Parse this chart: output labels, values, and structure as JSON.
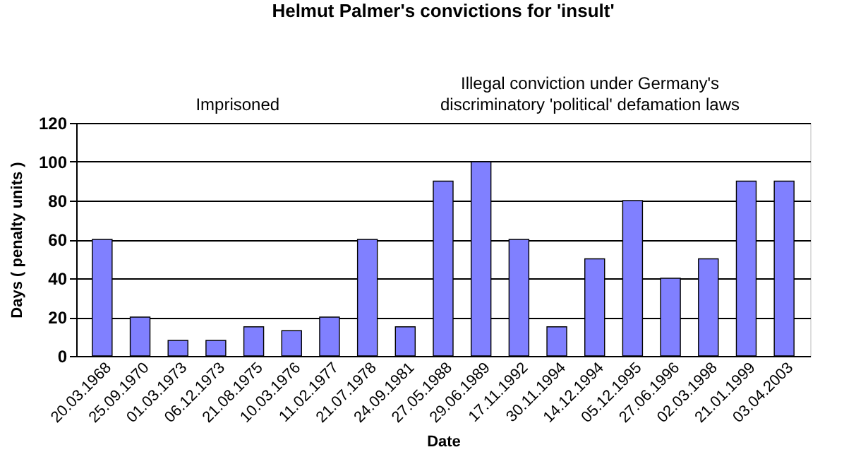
{
  "chart_data": {
    "type": "bar",
    "title": "Helmut Palmer's convictions for 'insult'",
    "xlabel": "Date",
    "ylabel": "Days ( penalty units )",
    "categories": [
      "20.03.1968",
      "25.09.1970",
      "01.03.1973",
      "06.12.1973",
      "21.08.1975",
      "10.03.1976",
      "11.02.1977",
      "21.07.1978",
      "24.09.1981",
      "27.05.1988",
      "29.06.1989",
      "17.11.1992",
      "30.11.1994",
      "14.12.1994",
      "05.12.1995",
      "27.06.1996",
      "02.03.1998",
      "21.01.1999",
      "03.04.2003"
    ],
    "values": [
      60,
      20,
      8,
      8,
      15,
      13,
      20,
      60,
      15,
      90,
      100,
      60,
      15,
      50,
      80,
      40,
      50,
      90,
      90
    ],
    "color": "#8080ff",
    "ylim": [
      0,
      120
    ],
    "yticks": [
      0,
      20,
      40,
      60,
      80,
      100,
      120
    ],
    "grid": "y",
    "annotations": [
      "Imprisoned",
      "Illegal conviction under Germany's\ndiscriminatory 'political' defamation laws"
    ]
  }
}
